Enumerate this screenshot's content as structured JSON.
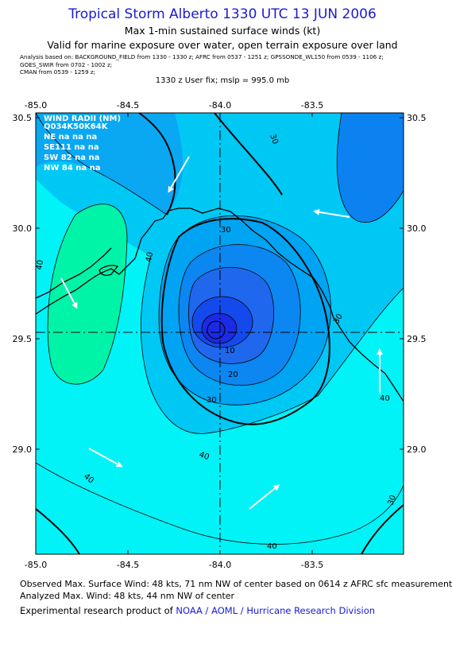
{
  "title": "Tropical Storm Alberto 1330 UTC 13 JUN 2006",
  "subtitle1": "Max 1-min sustained surface winds (kt)",
  "subtitle2": "Valid for marine exposure over water, open terrain exposure over land",
  "analysis_lines": [
    "Analysis based on:  BACKGROUND_FIELD from 1330 - 1330 z;  AFRC from 0537 - 1251 z;  GPSSONDE_WL150 from 0539 - 1106 z;",
    "GOES_SWIR from 0702 - 1002 z;",
    "CMAN from 0539 - 1259 z;"
  ],
  "user_fix": "1330 z User fix; mslp = 995.0 mb",
  "map": {
    "x_ticks": [
      "-85.0",
      "-84.5",
      "-84.0",
      "-83.5"
    ],
    "y_ticks": [
      "30.5",
      "30.0",
      "29.5",
      "29.0"
    ],
    "contour_labels": [
      "30",
      "40",
      "40",
      "30",
      "30",
      "10",
      "20",
      "30",
      "40",
      "40",
      "40",
      "40"
    ],
    "wind_radii": {
      "title": "WIND RADII (NM)",
      "header": "Q034K50K64K",
      "rows": [
        "NE na na na",
        "SE111 na na",
        "SW 82 na na",
        "NW 84 na na"
      ]
    },
    "colors": {
      "outer": "#00f3f7",
      "ring30": "#00c8f5",
      "ring20": "#00a4f2",
      "core": "#1f68ee",
      "mid": "#0c86f0",
      "inner": "#1449ec",
      "eye": "#1a2ae5",
      "green": "#00f4a8",
      "nw_blue": "#0aa8f2",
      "ne_blue": "#0c82f0"
    }
  },
  "footer": {
    "line1": "Observed Max. Surface Wind: 48 kts, 71 nm NW of center based on 0614 z AFRC sfc measurement",
    "line2": "Analyzed Max. Wind: 48 kts, 44 nm NW of center",
    "line3_prefix": "Experimental research product of ",
    "line3_link": "NOAA / AOML / Hurricane Research Division"
  }
}
